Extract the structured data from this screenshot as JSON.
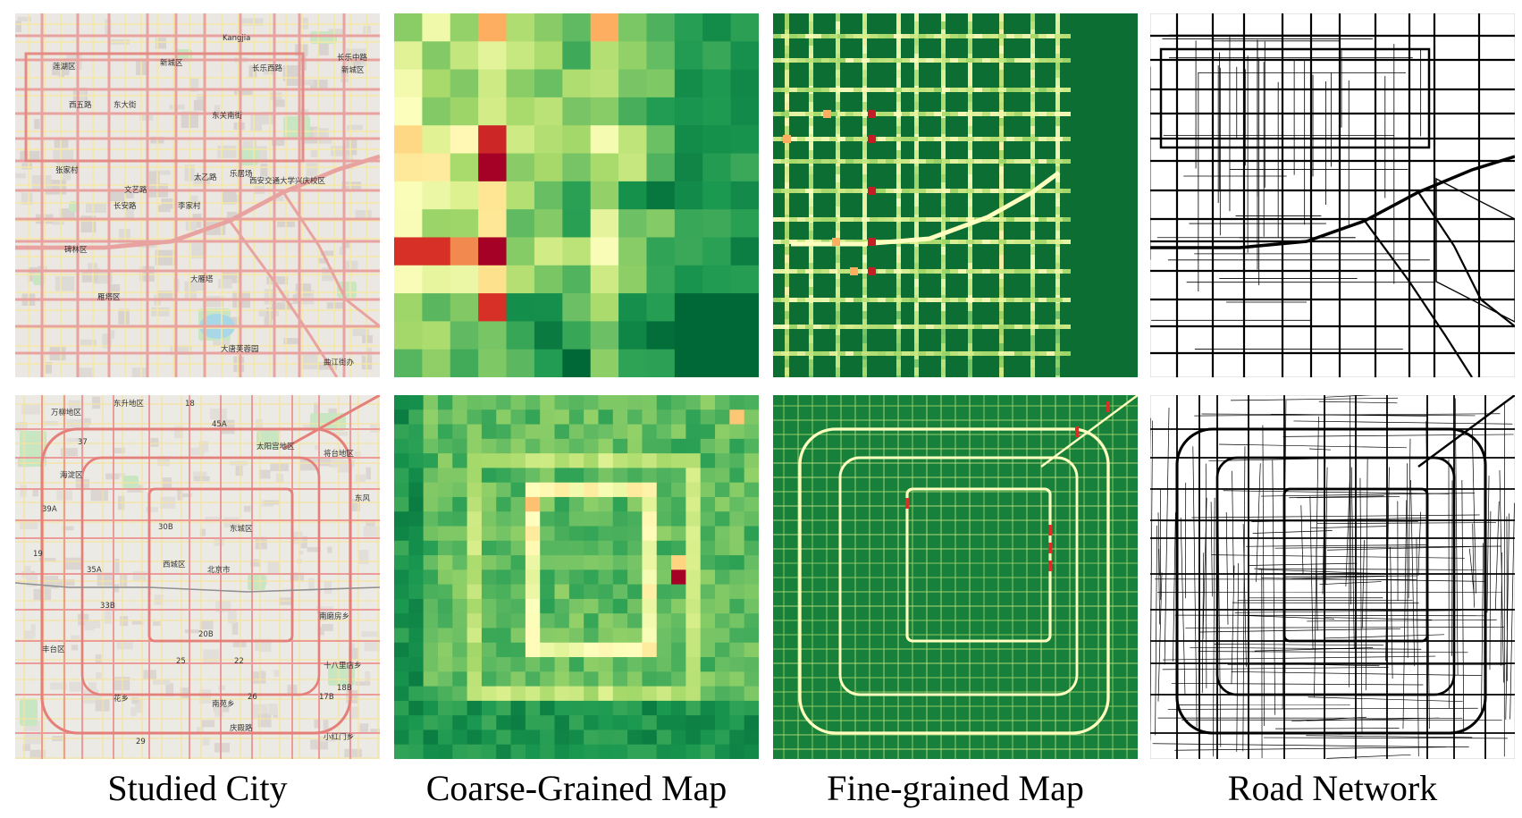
{
  "colors": {
    "map_background": "#ece9e4",
    "map_major_road": "#e6848a",
    "map_secondary_road": "#f6dc7e",
    "map_park": "#bfe3bd",
    "heat_low": "#1a7a3a",
    "heat_mid": "#f8f4b6",
    "heat_high": "#a50026",
    "road_network_line": "#000000"
  },
  "captions": [
    {
      "id": "studied-city",
      "text": "Studied City"
    },
    {
      "id": "coarse-grained-map",
      "text": "Coarse-Grained Map"
    },
    {
      "id": "fine-grained-map",
      "text": "Fine-grained Map"
    },
    {
      "id": "road-network",
      "text": "Road Network"
    }
  ],
  "top_city_map": {
    "labels": [
      "Kangjia",
      "长乐中路",
      "莲湖区",
      "新城区",
      "长乐西路",
      "新城区",
      "东关南街",
      "张家村",
      "太乙路",
      "乐居场",
      "西安交通大学兴庆校区",
      "文艺路",
      "长安路",
      "李家村",
      "碑林区",
      "大雁塔",
      "雁塔区",
      "曲江街办",
      "大唐芙蓉园",
      "西五路",
      "东大街"
    ]
  },
  "bottom_city_map": {
    "labels": [
      "万柳地区",
      "东升地区",
      "海淀区",
      "太阳宫地区",
      "将台地区",
      "东城区",
      "西城区",
      "北京市",
      "东风",
      "南磨房乡",
      "丰台区",
      "十八里店乡",
      "花乡",
      "南苑乡",
      "庆殿路",
      "小红门乡",
      "30B",
      "33B",
      "35A",
      "20B",
      "17B",
      "18B",
      "25",
      "22",
      "26",
      "18",
      "19",
      "29",
      "37",
      "39A",
      "45A"
    ]
  }
}
